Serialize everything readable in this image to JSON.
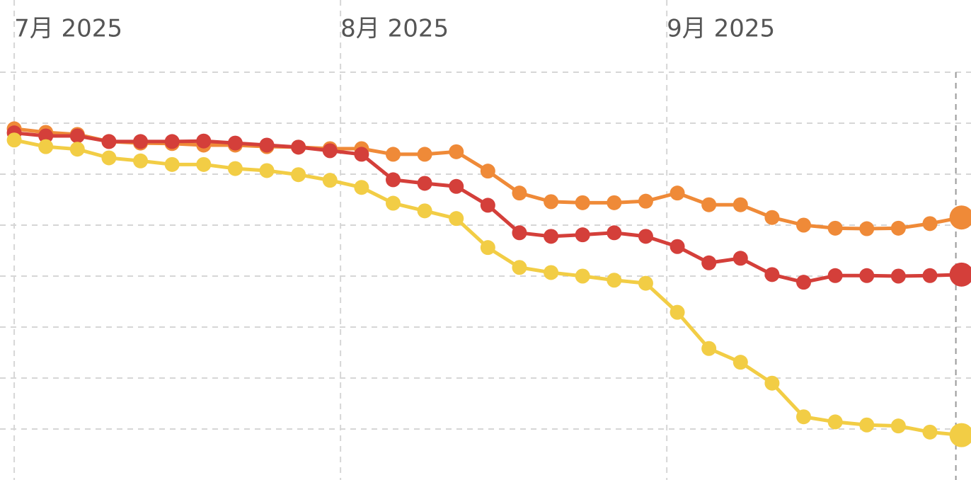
{
  "chart_data": {
    "type": "line",
    "x": [
      0,
      3,
      6,
      9,
      12,
      15,
      18,
      21,
      24,
      27,
      30,
      33,
      36,
      39,
      42,
      45,
      48,
      51,
      54,
      57,
      60,
      63,
      66,
      69,
      72,
      75,
      78,
      81,
      84,
      87,
      90
    ],
    "xlim": [
      -1.35,
      90.9
    ],
    "xticks": [
      {
        "value": 0,
        "label": "7月 2025"
      },
      {
        "value": 31,
        "label": "8月 2025"
      },
      {
        "value": 62,
        "label": "9月 2025"
      }
    ],
    "ylim": [
      0,
      8
    ],
    "yticks": [
      1,
      2,
      3,
      4,
      5,
      6,
      7,
      8
    ],
    "grid": true,
    "series": [
      {
        "color": "#ef8a38",
        "values": [
          6.89,
          6.82,
          6.78,
          6.64,
          6.61,
          6.6,
          6.57,
          6.57,
          6.54,
          6.53,
          6.5,
          6.5,
          6.39,
          6.39,
          6.44,
          6.06,
          5.63,
          5.46,
          5.44,
          5.44,
          5.47,
          5.63,
          5.4,
          5.4,
          5.15,
          5.0,
          4.94,
          4.93,
          4.94,
          5.03,
          5.15
        ]
      },
      {
        "color": "#d43f3a",
        "values": [
          6.81,
          6.75,
          6.75,
          6.64,
          6.64,
          6.64,
          6.65,
          6.61,
          6.57,
          6.53,
          6.46,
          6.39,
          5.89,
          5.82,
          5.76,
          5.39,
          4.85,
          4.78,
          4.81,
          4.85,
          4.78,
          4.58,
          4.26,
          4.35,
          4.03,
          3.88,
          4.01,
          4.01,
          4.0,
          4.01,
          4.03
        ]
      },
      {
        "color": "#f2cd45",
        "values": [
          6.67,
          6.54,
          6.49,
          6.32,
          6.26,
          6.19,
          6.19,
          6.11,
          6.07,
          5.99,
          5.88,
          5.74,
          5.43,
          5.28,
          5.13,
          4.56,
          4.17,
          4.07,
          4.0,
          3.92,
          3.86,
          3.29,
          2.58,
          2.31,
          1.9,
          1.24,
          1.14,
          1.08,
          1.06,
          0.94,
          0.88
        ]
      }
    ]
  }
}
